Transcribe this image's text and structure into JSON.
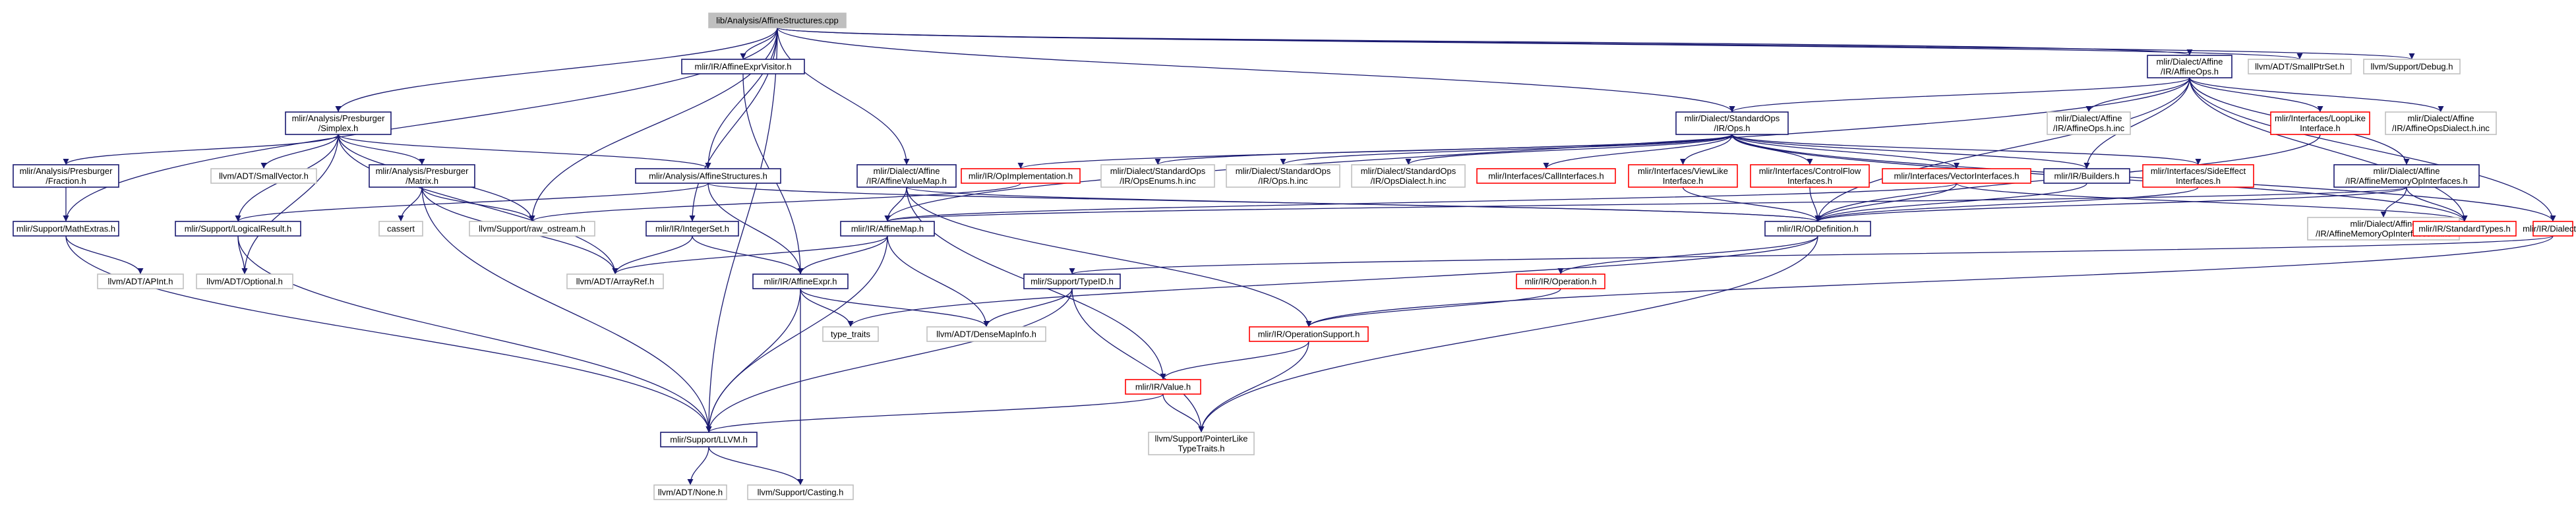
{
  "title": "lib/Analysis/AffineStructures.cpp",
  "colors": {
    "black": "#191970",
    "red": "#ff0000",
    "grey": "#bfbfbf",
    "root_fill": "#bfbfbf",
    "edge": "#191970",
    "text": "#000000"
  },
  "nodes": [
    {
      "id": "root",
      "lines": [
        "lib/Analysis/AffineStructures.cpp"
      ],
      "style": "root"
    },
    {
      "id": "affexprvisitor",
      "lines": [
        "mlir/IR/AffineExprVisitor.h"
      ],
      "style": "black"
    },
    {
      "id": "affineops",
      "lines": [
        "mlir/Dialect/Affine",
        "/IR/AffineOps.h"
      ],
      "style": "black"
    },
    {
      "id": "smallptrset",
      "lines": [
        "llvm/ADT/SmallPtrSet.h"
      ],
      "style": "grey"
    },
    {
      "id": "debug",
      "lines": [
        "llvm/Support/Debug.h"
      ],
      "style": "grey"
    },
    {
      "id": "simplex",
      "lines": [
        "mlir/Analysis/Presburger",
        "/Simplex.h"
      ],
      "style": "black"
    },
    {
      "id": "stdops",
      "lines": [
        "mlir/Dialect/StandardOps",
        "/IR/Ops.h"
      ],
      "style": "black"
    },
    {
      "id": "affineopsinc",
      "lines": [
        "mlir/Dialect/Affine",
        "/IR/AffineOps.h.inc"
      ],
      "style": "grey"
    },
    {
      "id": "looplike",
      "lines": [
        "mlir/Interfaces/LoopLike",
        "Interface.h"
      ],
      "style": "red"
    },
    {
      "id": "affineopsdialectinc",
      "lines": [
        "mlir/Dialect/Affine",
        "/IR/AffineOpsDialect.h.inc"
      ],
      "style": "grey"
    },
    {
      "id": "fraction",
      "lines": [
        "mlir/Analysis/Presburger",
        "/Fraction.h"
      ],
      "style": "black"
    },
    {
      "id": "smallvector",
      "lines": [
        "llvm/ADT/SmallVector.h"
      ],
      "style": "grey"
    },
    {
      "id": "matrix",
      "lines": [
        "mlir/Analysis/Presburger",
        "/Matrix.h"
      ],
      "style": "black"
    },
    {
      "id": "affinestructures",
      "lines": [
        "mlir/Analysis/AffineStructures.h"
      ],
      "style": "black"
    },
    {
      "id": "affinevaluemap",
      "lines": [
        "mlir/Dialect/Affine",
        "/IR/AffineValueMap.h"
      ],
      "style": "black"
    },
    {
      "id": "opimpl",
      "lines": [
        "mlir/IR/OpImplementation.h"
      ],
      "style": "red"
    },
    {
      "id": "opsenumsinc",
      "lines": [
        "mlir/Dialect/StandardOps",
        "/IR/OpsEnums.h.inc"
      ],
      "style": "grey"
    },
    {
      "id": "opshinc",
      "lines": [
        "mlir/Dialect/StandardOps",
        "/IR/Ops.h.inc"
      ],
      "style": "grey"
    },
    {
      "id": "opsdialectinc",
      "lines": [
        "mlir/Dialect/StandardOps",
        "/IR/OpsDialect.h.inc"
      ],
      "style": "grey"
    },
    {
      "id": "callinterfaces",
      "lines": [
        "mlir/Interfaces/CallInterfaces.h"
      ],
      "style": "red"
    },
    {
      "id": "viewlike",
      "lines": [
        "mlir/Interfaces/ViewLike",
        "Interface.h"
      ],
      "style": "red"
    },
    {
      "id": "controlflow",
      "lines": [
        "mlir/Interfaces/ControlFlow",
        "Interfaces.h"
      ],
      "style": "red"
    },
    {
      "id": "vectorinterfaces",
      "lines": [
        "mlir/Interfaces/VectorInterfaces.h"
      ],
      "style": "red"
    },
    {
      "id": "builders",
      "lines": [
        "mlir/IR/Builders.h"
      ],
      "style": "black"
    },
    {
      "id": "sideeffect",
      "lines": [
        "mlir/Interfaces/SideEffect",
        "Interfaces.h"
      ],
      "style": "red"
    },
    {
      "id": "memoryopinterfaces",
      "lines": [
        "mlir/Dialect/Affine",
        "/IR/AffineMemoryOpInterfaces.h"
      ],
      "style": "black"
    },
    {
      "id": "mathextras",
      "lines": [
        "mlir/Support/MathExtras.h"
      ],
      "style": "black"
    },
    {
      "id": "logicalresult",
      "lines": [
        "mlir/Support/LogicalResult.h"
      ],
      "style": "black"
    },
    {
      "id": "cassert",
      "lines": [
        "cassert"
      ],
      "style": "grey"
    },
    {
      "id": "rawostream",
      "lines": [
        "llvm/Support/raw_ostream.h"
      ],
      "style": "grey"
    },
    {
      "id": "affinemap",
      "lines": [
        "mlir/IR/AffineMap.h"
      ],
      "style": "black"
    },
    {
      "id": "opdefinition",
      "lines": [
        "mlir/IR/OpDefinition.h"
      ],
      "style": "black"
    },
    {
      "id": "memoryopinterfacesinc",
      "lines": [
        "mlir/Dialect/Affine",
        "/IR/AffineMemoryOpInterfaces.h.inc"
      ],
      "style": "grey"
    },
    {
      "id": "standardtypes",
      "lines": [
        "mlir/IR/StandardTypes.h"
      ],
      "style": "red"
    },
    {
      "id": "dialect",
      "lines": [
        "mlir/IR/Dialect.h"
      ],
      "style": "red"
    },
    {
      "id": "integerset",
      "lines": [
        "mlir/IR/IntegerSet.h"
      ],
      "style": "black"
    },
    {
      "id": "apint",
      "lines": [
        "llvm/ADT/APInt.h"
      ],
      "style": "grey"
    },
    {
      "id": "optional",
      "lines": [
        "llvm/ADT/Optional.h"
      ],
      "style": "grey"
    },
    {
      "id": "arrayref",
      "lines": [
        "llvm/ADT/ArrayRef.h"
      ],
      "style": "grey"
    },
    {
      "id": "affineexpr",
      "lines": [
        "mlir/IR/AffineExpr.h"
      ],
      "style": "black"
    },
    {
      "id": "typeid",
      "lines": [
        "mlir/Support/TypeID.h"
      ],
      "style": "black"
    },
    {
      "id": "operation",
      "lines": [
        "mlir/IR/Operation.h"
      ],
      "style": "red"
    },
    {
      "id": "typetraits",
      "lines": [
        "type_traits"
      ],
      "style": "grey"
    },
    {
      "id": "densemapinfo",
      "lines": [
        "llvm/ADT/DenseMapInfo.h"
      ],
      "style": "grey"
    },
    {
      "id": "operationsupport",
      "lines": [
        "mlir/IR/OperationSupport.h"
      ],
      "style": "red"
    },
    {
      "id": "value",
      "lines": [
        "mlir/IR/Value.h"
      ],
      "style": "red"
    },
    {
      "id": "pointerliketypetraits",
      "lines": [
        "llvm/Support/PointerLike",
        "TypeTraits.h"
      ],
      "style": "grey"
    },
    {
      "id": "llvm",
      "lines": [
        "mlir/Support/LLVM.h"
      ],
      "style": "black"
    },
    {
      "id": "none",
      "lines": [
        "llvm/ADT/None.h"
      ],
      "style": "grey"
    },
    {
      "id": "casting",
      "lines": [
        "llvm/Support/Casting.h"
      ],
      "style": "grey"
    }
  ],
  "edges": [
    [
      "root",
      "affexprvisitor"
    ],
    [
      "root",
      "affineops"
    ],
    [
      "root",
      "smallptrset"
    ],
    [
      "root",
      "debug"
    ],
    [
      "root",
      "simplex"
    ],
    [
      "root",
      "affinestructures"
    ],
    [
      "root",
      "affinevaluemap"
    ],
    [
      "root",
      "rawostream"
    ],
    [
      "root",
      "integerset"
    ],
    [
      "root",
      "mathextras"
    ],
    [
      "root",
      "llvm"
    ],
    [
      "root",
      "stdops"
    ],
    [
      "affexprvisitor",
      "affineexpr"
    ],
    [
      "affineops",
      "stdops"
    ],
    [
      "affineops",
      "affineopsinc"
    ],
    [
      "affineops",
      "looplike"
    ],
    [
      "affineops",
      "affineopsdialectinc"
    ],
    [
      "affineops",
      "memoryopinterfaces"
    ],
    [
      "affineops",
      "builders"
    ],
    [
      "affineops",
      "affinemap"
    ],
    [
      "affineops",
      "opdefinition"
    ],
    [
      "affineops",
      "dialect"
    ],
    [
      "affineops",
      "standardtypes"
    ],
    [
      "simplex",
      "fraction"
    ],
    [
      "simplex",
      "smallvector"
    ],
    [
      "simplex",
      "matrix"
    ],
    [
      "simplex",
      "affinestructures"
    ],
    [
      "simplex",
      "logicalresult"
    ],
    [
      "simplex",
      "optional"
    ],
    [
      "simplex",
      "rawostream"
    ],
    [
      "simplex",
      "arrayref"
    ],
    [
      "stdops",
      "opimpl"
    ],
    [
      "stdops",
      "opsenumsinc"
    ],
    [
      "stdops",
      "opshinc"
    ],
    [
      "stdops",
      "opsdialectinc"
    ],
    [
      "stdops",
      "callinterfaces"
    ],
    [
      "stdops",
      "viewlike"
    ],
    [
      "stdops",
      "controlflow"
    ],
    [
      "stdops",
      "vectorinterfaces"
    ],
    [
      "stdops",
      "builders"
    ],
    [
      "stdops",
      "sideeffect"
    ],
    [
      "stdops",
      "standardtypes"
    ],
    [
      "stdops",
      "dialect"
    ],
    [
      "looplike",
      "opdefinition"
    ],
    [
      "fraction",
      "mathextras"
    ],
    [
      "matrix",
      "cassert"
    ],
    [
      "matrix",
      "rawostream"
    ],
    [
      "matrix",
      "arrayref"
    ],
    [
      "matrix",
      "llvm"
    ],
    [
      "affinestructures",
      "logicalresult"
    ],
    [
      "affinestructures",
      "affineexpr"
    ],
    [
      "affinestructures",
      "opdefinition"
    ],
    [
      "affinevaluemap",
      "affinemap"
    ],
    [
      "affinevaluemap",
      "opdefinition"
    ],
    [
      "affinevaluemap",
      "operationsupport"
    ],
    [
      "affinevaluemap",
      "value"
    ],
    [
      "opimpl",
      "rawostream"
    ],
    [
      "viewlike",
      "opdefinition"
    ],
    [
      "controlflow",
      "opdefinition"
    ],
    [
      "vectorinterfaces",
      "affinemap"
    ],
    [
      "vectorinterfaces",
      "opdefinition"
    ],
    [
      "vectorinterfaces",
      "standardtypes"
    ],
    [
      "builders",
      "opdefinition"
    ],
    [
      "sideeffect",
      "opdefinition"
    ],
    [
      "memoryopinterfaces",
      "affinemap"
    ],
    [
      "memoryopinterfaces",
      "opdefinition"
    ],
    [
      "memoryopinterfaces",
      "memoryopinterfacesinc"
    ],
    [
      "memoryopinterfaces",
      "standardtypes"
    ],
    [
      "mathextras",
      "apint"
    ],
    [
      "mathextras",
      "llvm"
    ],
    [
      "logicalresult",
      "optional"
    ],
    [
      "logicalresult",
      "llvm"
    ],
    [
      "affinemap",
      "affineexpr"
    ],
    [
      "affinemap",
      "arrayref"
    ],
    [
      "affinemap",
      "densemapinfo"
    ],
    [
      "affinemap",
      "llvm"
    ],
    [
      "opdefinition",
      "operation"
    ],
    [
      "opdefinition",
      "typetraits"
    ],
    [
      "opdefinition",
      "pointerliketypetraits"
    ],
    [
      "dialect",
      "operationsupport"
    ],
    [
      "dialect",
      "typeid"
    ],
    [
      "integerset",
      "affineexpr"
    ],
    [
      "integerset",
      "arrayref"
    ],
    [
      "affineexpr",
      "typetraits"
    ],
    [
      "affineexpr",
      "densemapinfo"
    ],
    [
      "affineexpr",
      "llvm"
    ],
    [
      "affineexpr",
      "casting"
    ],
    [
      "typeid",
      "densemapinfo"
    ],
    [
      "typeid",
      "pointerliketypetraits"
    ],
    [
      "typeid",
      "llvm"
    ],
    [
      "operation",
      "operationsupport"
    ],
    [
      "operationsupport",
      "value"
    ],
    [
      "operationsupport",
      "pointerliketypetraits"
    ],
    [
      "value",
      "llvm"
    ],
    [
      "value",
      "pointerliketypetraits"
    ],
    [
      "llvm",
      "none"
    ],
    [
      "llvm",
      "casting"
    ]
  ]
}
